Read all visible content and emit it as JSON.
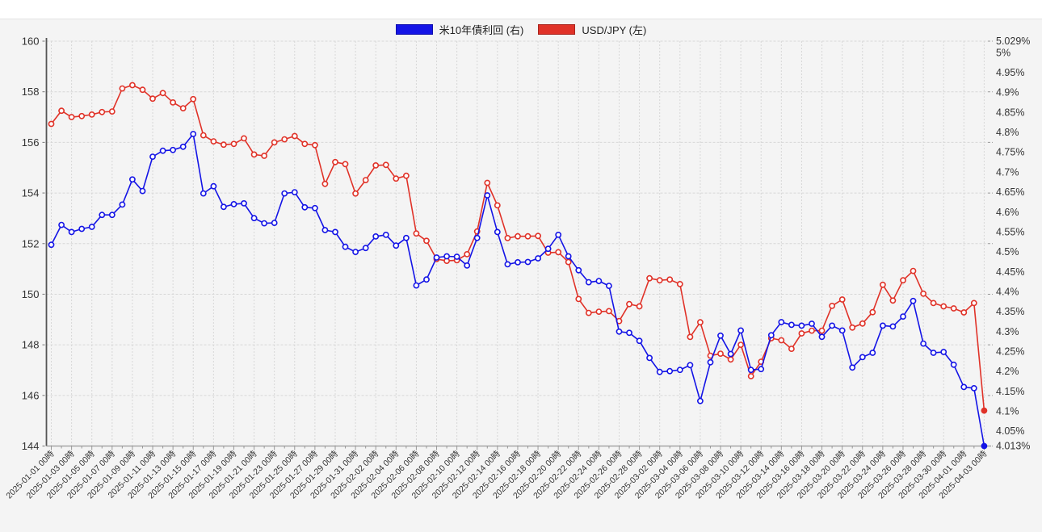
{
  "colors": {
    "us10y_line": "#1414e6",
    "usdjpy_line": "#e03228",
    "panel_background": "#f4f4f4",
    "page_background": "#ffffff",
    "gridline": "#d7d7d7",
    "axis_line": "#555555",
    "axis_text": "#333333"
  },
  "chart_data": {
    "type": "line",
    "title": "",
    "legend_position": "top-center",
    "grid": true,
    "x_tick_labels": [
      "2025-01-01 00時",
      "2025-01-03 00時",
      "2025-01-05 00時",
      "2025-01-07 00時",
      "2025-01-09 00時",
      "2025-01-11 00時",
      "2025-01-13 00時",
      "2025-01-15 00時",
      "2025-01-17 00時",
      "2025-01-19 00時",
      "2025-01-21 00時",
      "2025-01-23 00時",
      "2025-01-25 00時",
      "2025-01-27 00時",
      "2025-01-29 00時",
      "2025-01-31 00時",
      "2025-02-02 00時",
      "2025-02-04 00時",
      "2025-02-06 00時",
      "2025-02-08 00時",
      "2025-02-10 00時",
      "2025-02-12 00時",
      "2025-02-14 00時",
      "2025-02-16 00時",
      "2025-02-18 00時",
      "2025-02-20 00時",
      "2025-02-22 00時",
      "2025-02-24 00時",
      "2025-02-26 00時",
      "2025-02-28 00時",
      "2025-03-02 00時",
      "2025-03-04 00時",
      "2025-03-06 00時",
      "2025-03-08 00時",
      "2025-03-10 00時",
      "2025-03-12 00時",
      "2025-03-14 00時",
      "2025-03-16 00時",
      "2025-03-18 00時",
      "2025-03-20 00時",
      "2025-03-22 00時",
      "2025-03-24 00時",
      "2025-03-26 00時",
      "2025-03-28 00時",
      "2025-03-30 00時",
      "2025-04-01 00時",
      "2025-04-03 00時"
    ],
    "axes": {
      "left": {
        "min": 144,
        "max": 160,
        "ticks": [
          160,
          158,
          156,
          154,
          152,
          150,
          148,
          146,
          144
        ]
      },
      "right": {
        "min": 4.013,
        "max": 5.029,
        "labels": [
          {
            "text": "5.029%",
            "value": 5.029
          },
          {
            "text": "5%",
            "value": 5.0
          },
          {
            "text": "4.95%",
            "value": 4.95
          },
          {
            "text": "4.9%",
            "value": 4.9
          },
          {
            "text": "4.85%",
            "value": 4.85
          },
          {
            "text": "4.8%",
            "value": 4.8
          },
          {
            "text": "4.75%",
            "value": 4.75
          },
          {
            "text": "4.7%",
            "value": 4.7
          },
          {
            "text": "4.65%",
            "value": 4.65
          },
          {
            "text": "4.6%",
            "value": 4.6
          },
          {
            "text": "4.55%",
            "value": 4.55
          },
          {
            "text": "4.5%",
            "value": 4.5
          },
          {
            "text": "4.45%",
            "value": 4.45
          },
          {
            "text": "4.4%",
            "value": 4.4
          },
          {
            "text": "4.35%",
            "value": 4.35
          },
          {
            "text": "4.3%",
            "value": 4.3
          },
          {
            "text": "4.25%",
            "value": 4.25
          },
          {
            "text": "4.2%",
            "value": 4.2
          },
          {
            "text": "4.15%",
            "value": 4.15
          },
          {
            "text": "4.1%",
            "value": 4.1
          },
          {
            "text": "4.05%",
            "value": 4.05
          },
          {
            "text": "4.013%",
            "value": 4.013
          }
        ]
      }
    },
    "series": [
      {
        "id": "us10y",
        "legend_label": "米10年債利回 (右)",
        "axis": "right",
        "color": "#1414e6",
        "values": [
          4.518,
          4.568,
          4.55,
          4.558,
          4.563,
          4.593,
          4.593,
          4.619,
          4.682,
          4.653,
          4.739,
          4.754,
          4.756,
          4.764,
          4.796,
          4.647,
          4.665,
          4.613,
          4.62,
          4.622,
          4.585,
          4.572,
          4.573,
          4.647,
          4.65,
          4.612,
          4.61,
          4.555,
          4.55,
          4.513,
          4.5,
          4.51,
          4.539,
          4.543,
          4.516,
          4.535,
          4.416,
          4.431,
          4.486,
          4.489,
          4.488,
          4.466,
          4.535,
          4.642,
          4.55,
          4.469,
          4.474,
          4.475,
          4.484,
          4.508,
          4.543,
          4.489,
          4.454,
          4.424,
          4.427,
          4.415,
          4.3,
          4.297,
          4.277,
          4.234,
          4.199,
          4.201,
          4.204,
          4.216,
          4.126,
          4.223,
          4.29,
          4.244,
          4.303,
          4.204,
          4.206,
          4.291,
          4.324,
          4.317,
          4.315,
          4.32,
          4.287,
          4.315,
          4.303,
          4.21,
          4.236,
          4.247,
          4.315,
          4.313,
          4.338,
          4.377,
          4.27,
          4.247,
          4.249,
          4.217,
          4.161,
          4.158,
          4.013
        ]
      },
      {
        "id": "usdjpy",
        "legend_label": "USD/JPY (左)",
        "axis": "left",
        "color": "#e03228",
        "values": [
          156.73,
          157.25,
          157.0,
          157.04,
          157.1,
          157.2,
          157.22,
          158.13,
          158.26,
          158.08,
          157.73,
          157.95,
          157.58,
          157.35,
          157.71,
          156.28,
          156.04,
          155.91,
          155.94,
          156.16,
          155.52,
          155.47,
          156.0,
          156.12,
          156.25,
          155.94,
          155.89,
          154.36,
          155.22,
          155.14,
          153.98,
          154.51,
          155.09,
          155.11,
          154.57,
          154.68,
          152.4,
          152.11,
          151.39,
          151.32,
          151.34,
          151.58,
          152.48,
          154.4,
          153.51,
          152.22,
          152.29,
          152.29,
          152.3,
          151.64,
          151.66,
          151.27,
          149.81,
          149.26,
          149.31,
          149.33,
          148.94,
          149.61,
          149.52,
          150.63,
          150.55,
          150.58,
          150.4,
          148.31,
          148.89,
          147.57,
          147.65,
          147.42,
          148.0,
          146.76,
          147.33,
          148.26,
          148.18,
          147.84,
          148.45,
          148.56,
          148.56,
          149.54,
          149.79,
          148.68,
          148.84,
          149.29,
          150.37,
          149.75,
          150.55,
          150.92,
          150.02,
          149.65,
          149.52,
          149.44,
          149.28,
          149.65,
          145.4
        ]
      }
    ]
  }
}
